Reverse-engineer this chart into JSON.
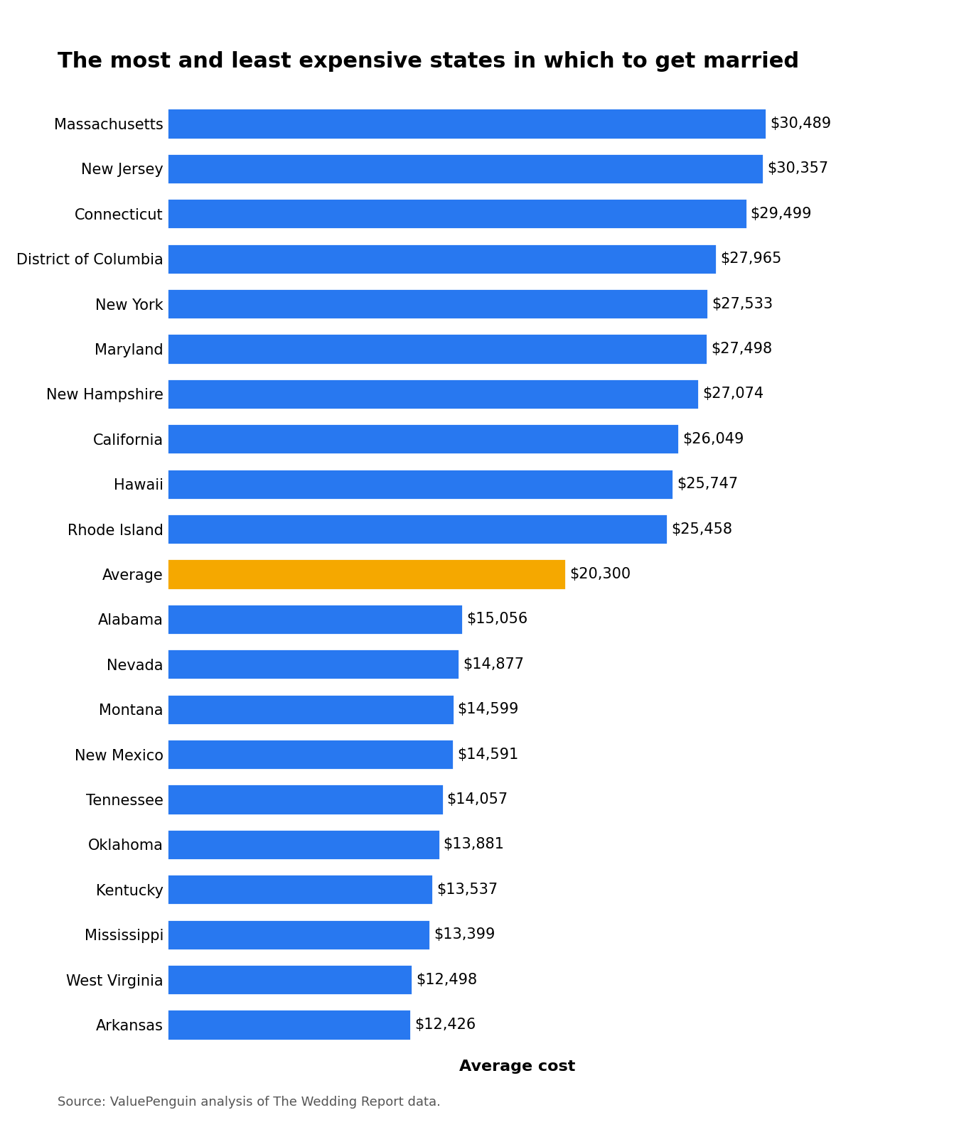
{
  "title": "The most and least expensive states in which to get married",
  "xlabel": "Average cost",
  "source": "Source: ValuePenguin analysis of The Wedding Report data.",
  "categories": [
    "Massachusetts",
    "New Jersey",
    "Connecticut",
    "District of Columbia",
    "New York",
    "Maryland",
    "New Hampshire",
    "California",
    "Hawaii",
    "Rhode Island",
    "Average",
    "Alabama",
    "Nevada",
    "Montana",
    "New Mexico",
    "Tennessee",
    "Oklahoma",
    "Kentucky",
    "Mississippi",
    "West Virginia",
    "Arkansas"
  ],
  "values": [
    30489,
    30357,
    29499,
    27965,
    27533,
    27498,
    27074,
    26049,
    25747,
    25458,
    20300,
    15056,
    14877,
    14599,
    14591,
    14057,
    13881,
    13537,
    13399,
    12498,
    12426
  ],
  "bar_colors": [
    "#2878F0",
    "#2878F0",
    "#2878F0",
    "#2878F0",
    "#2878F0",
    "#2878F0",
    "#2878F0",
    "#2878F0",
    "#2878F0",
    "#2878F0",
    "#F5A800",
    "#2878F0",
    "#2878F0",
    "#2878F0",
    "#2878F0",
    "#2878F0",
    "#2878F0",
    "#2878F0",
    "#2878F0",
    "#2878F0",
    "#2878F0"
  ],
  "background_color": "#ffffff",
  "title_fontsize": 22,
  "label_fontsize": 15,
  "tick_fontsize": 15,
  "xlabel_fontsize": 16,
  "source_fontsize": 13
}
